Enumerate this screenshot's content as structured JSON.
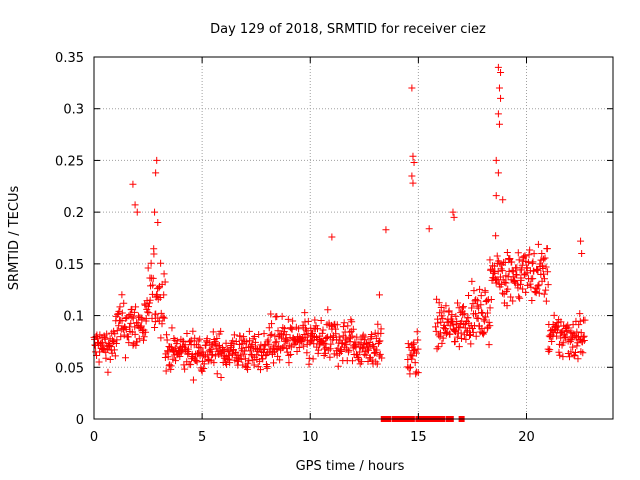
{
  "chart_data": {
    "type": "scatter",
    "title": "Day 129 of 2018, SRMTID for receiver ciez",
    "xlabel": "GPS time / hours",
    "ylabel": "SRMTID / TECUs",
    "xlim": [
      0,
      24
    ],
    "ylim": [
      0,
      0.35
    ],
    "xticks": [
      0,
      5,
      10,
      15,
      20
    ],
    "yticks": [
      0,
      0.05,
      0.1,
      0.15,
      0.2,
      0.25,
      0.3,
      0.35
    ],
    "ytick_labels": [
      "0",
      "0.05",
      "0.1",
      "0.15",
      "0.2",
      "0.25",
      "0.3",
      "0.35"
    ],
    "grid": true,
    "marker": "plus",
    "color": "#ff0000",
    "segments": [
      {
        "x_start": 0.0,
        "x_end": 1.0,
        "step": 0.02,
        "base": 0.07,
        "amp": 0.025
      },
      {
        "x_start": 1.0,
        "x_end": 2.5,
        "step": 0.02,
        "base": 0.09,
        "amp": 0.035
      },
      {
        "x_start": 2.5,
        "x_end": 3.3,
        "step": 0.02,
        "base": 0.12,
        "amp": 0.05
      },
      {
        "x_start": 3.3,
        "x_end": 8.0,
        "step": 0.02,
        "base": 0.065,
        "amp": 0.025
      },
      {
        "x_start": 8.0,
        "x_end": 12.0,
        "step": 0.02,
        "base": 0.075,
        "amp": 0.03
      },
      {
        "x_start": 12.0,
        "x_end": 13.3,
        "step": 0.02,
        "base": 0.07,
        "amp": 0.025
      },
      {
        "x_start": 14.5,
        "x_end": 15.0,
        "step": 0.02,
        "base": 0.06,
        "amp": 0.03
      },
      {
        "x_start": 15.8,
        "x_end": 17.0,
        "step": 0.02,
        "base": 0.09,
        "amp": 0.03
      },
      {
        "x_start": 17.0,
        "x_end": 18.3,
        "step": 0.02,
        "base": 0.1,
        "amp": 0.03
      },
      {
        "x_start": 18.3,
        "x_end": 21.0,
        "step": 0.02,
        "base": 0.14,
        "amp": 0.035
      },
      {
        "x_start": 21.0,
        "x_end": 22.7,
        "step": 0.02,
        "base": 0.08,
        "amp": 0.03
      }
    ],
    "outliers": [
      {
        "x": 1.8,
        "y": 0.227
      },
      {
        "x": 1.9,
        "y": 0.207
      },
      {
        "x": 2.0,
        "y": 0.2
      },
      {
        "x": 2.9,
        "y": 0.25
      },
      {
        "x": 2.85,
        "y": 0.238
      },
      {
        "x": 2.8,
        "y": 0.2
      },
      {
        "x": 2.95,
        "y": 0.19
      },
      {
        "x": 11.0,
        "y": 0.176
      },
      {
        "x": 13.2,
        "y": 0.12
      },
      {
        "x": 13.5,
        "y": 0.183
      },
      {
        "x": 14.7,
        "y": 0.32
      },
      {
        "x": 14.75,
        "y": 0.254
      },
      {
        "x": 14.8,
        "y": 0.248
      },
      {
        "x": 14.7,
        "y": 0.235
      },
      {
        "x": 14.75,
        "y": 0.228
      },
      {
        "x": 15.5,
        "y": 0.184
      },
      {
        "x": 16.6,
        "y": 0.2
      },
      {
        "x": 16.65,
        "y": 0.195
      },
      {
        "x": 18.7,
        "y": 0.34
      },
      {
        "x": 18.8,
        "y": 0.335
      },
      {
        "x": 18.75,
        "y": 0.32
      },
      {
        "x": 18.8,
        "y": 0.31
      },
      {
        "x": 18.7,
        "y": 0.295
      },
      {
        "x": 18.75,
        "y": 0.285
      },
      {
        "x": 18.6,
        "y": 0.25
      },
      {
        "x": 18.7,
        "y": 0.238
      },
      {
        "x": 18.6,
        "y": 0.216
      },
      {
        "x": 18.9,
        "y": 0.212
      },
      {
        "x": 22.5,
        "y": 0.172
      },
      {
        "x": 22.55,
        "y": 0.16
      }
    ],
    "zero_points_x": [
      13.4,
      13.6,
      13.9,
      14.1,
      14.3,
      14.5,
      14.7,
      15.0,
      15.1,
      15.3,
      15.4,
      15.6,
      15.8,
      15.9,
      16.1,
      16.4,
      16.5,
      17.0
    ]
  }
}
